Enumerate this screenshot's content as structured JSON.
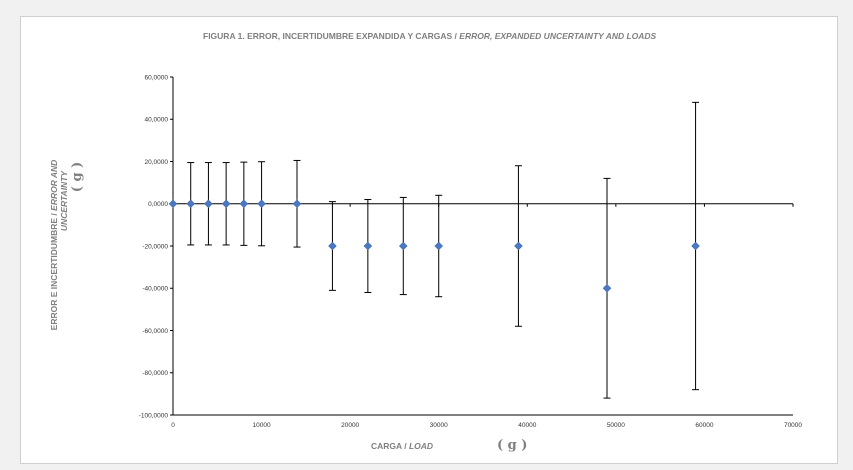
{
  "chart_data": {
    "type": "scatter",
    "title_main": "FIGURA 1.  ERROR, INCERTIDUMBRE EXPANDIDA Y CARGAS / ",
    "title_italic": "ERROR, EXPANDED UNCERTAINTY AND LOADS",
    "xlabel_main": "CARGA / ",
    "xlabel_italic": "LOAD",
    "xlabel_unit": "( g )",
    "ylabel_line1_main": "ERROR E INCERTIDUMBRE / ",
    "ylabel_line1_italic": "ERROR AND",
    "ylabel_line2_italic": "UNCERTAINTY",
    "ylabel_unit": "( g )",
    "xlim": [
      0,
      70000
    ],
    "ylim": [
      -100,
      60
    ],
    "x_ticks": [
      0,
      10000,
      20000,
      30000,
      40000,
      50000,
      60000,
      70000
    ],
    "x_tick_labels": [
      "0",
      "10000",
      "20000",
      "30000",
      "40000",
      "50000",
      "60000",
      "70000"
    ],
    "y_ticks": [
      60,
      40,
      20,
      0,
      -20,
      -40,
      -60,
      -80,
      -100
    ],
    "y_tick_labels": [
      "60,0000",
      "40,0000",
      "20,0000",
      "0,0000",
      "-20,0000",
      "-40,0000",
      "-60,0000",
      "-80,0000",
      "-100,0000"
    ],
    "grid": false,
    "marker_color": "#4a78c2",
    "errorbar_color": "#000000",
    "points": [
      {
        "x": 0,
        "y": 0,
        "err": 0
      },
      {
        "x": 2000,
        "y": 0,
        "err": 19.5
      },
      {
        "x": 4000,
        "y": 0,
        "err": 19.5
      },
      {
        "x": 6000,
        "y": 0,
        "err": 19.5
      },
      {
        "x": 8000,
        "y": 0,
        "err": 19.7
      },
      {
        "x": 10000,
        "y": 0,
        "err": 19.9
      },
      {
        "x": 14000,
        "y": 0,
        "err": 20.5
      },
      {
        "x": 18000,
        "y": -20,
        "err": 21
      },
      {
        "x": 22000,
        "y": -20,
        "err": 22
      },
      {
        "x": 26000,
        "y": -20,
        "err": 23
      },
      {
        "x": 30000,
        "y": -20,
        "err": 24
      },
      {
        "x": 39000,
        "y": -20,
        "err": 38
      },
      {
        "x": 49000,
        "y": -40,
        "err": 52
      },
      {
        "x": 59000,
        "y": -20,
        "err": 68
      }
    ]
  }
}
